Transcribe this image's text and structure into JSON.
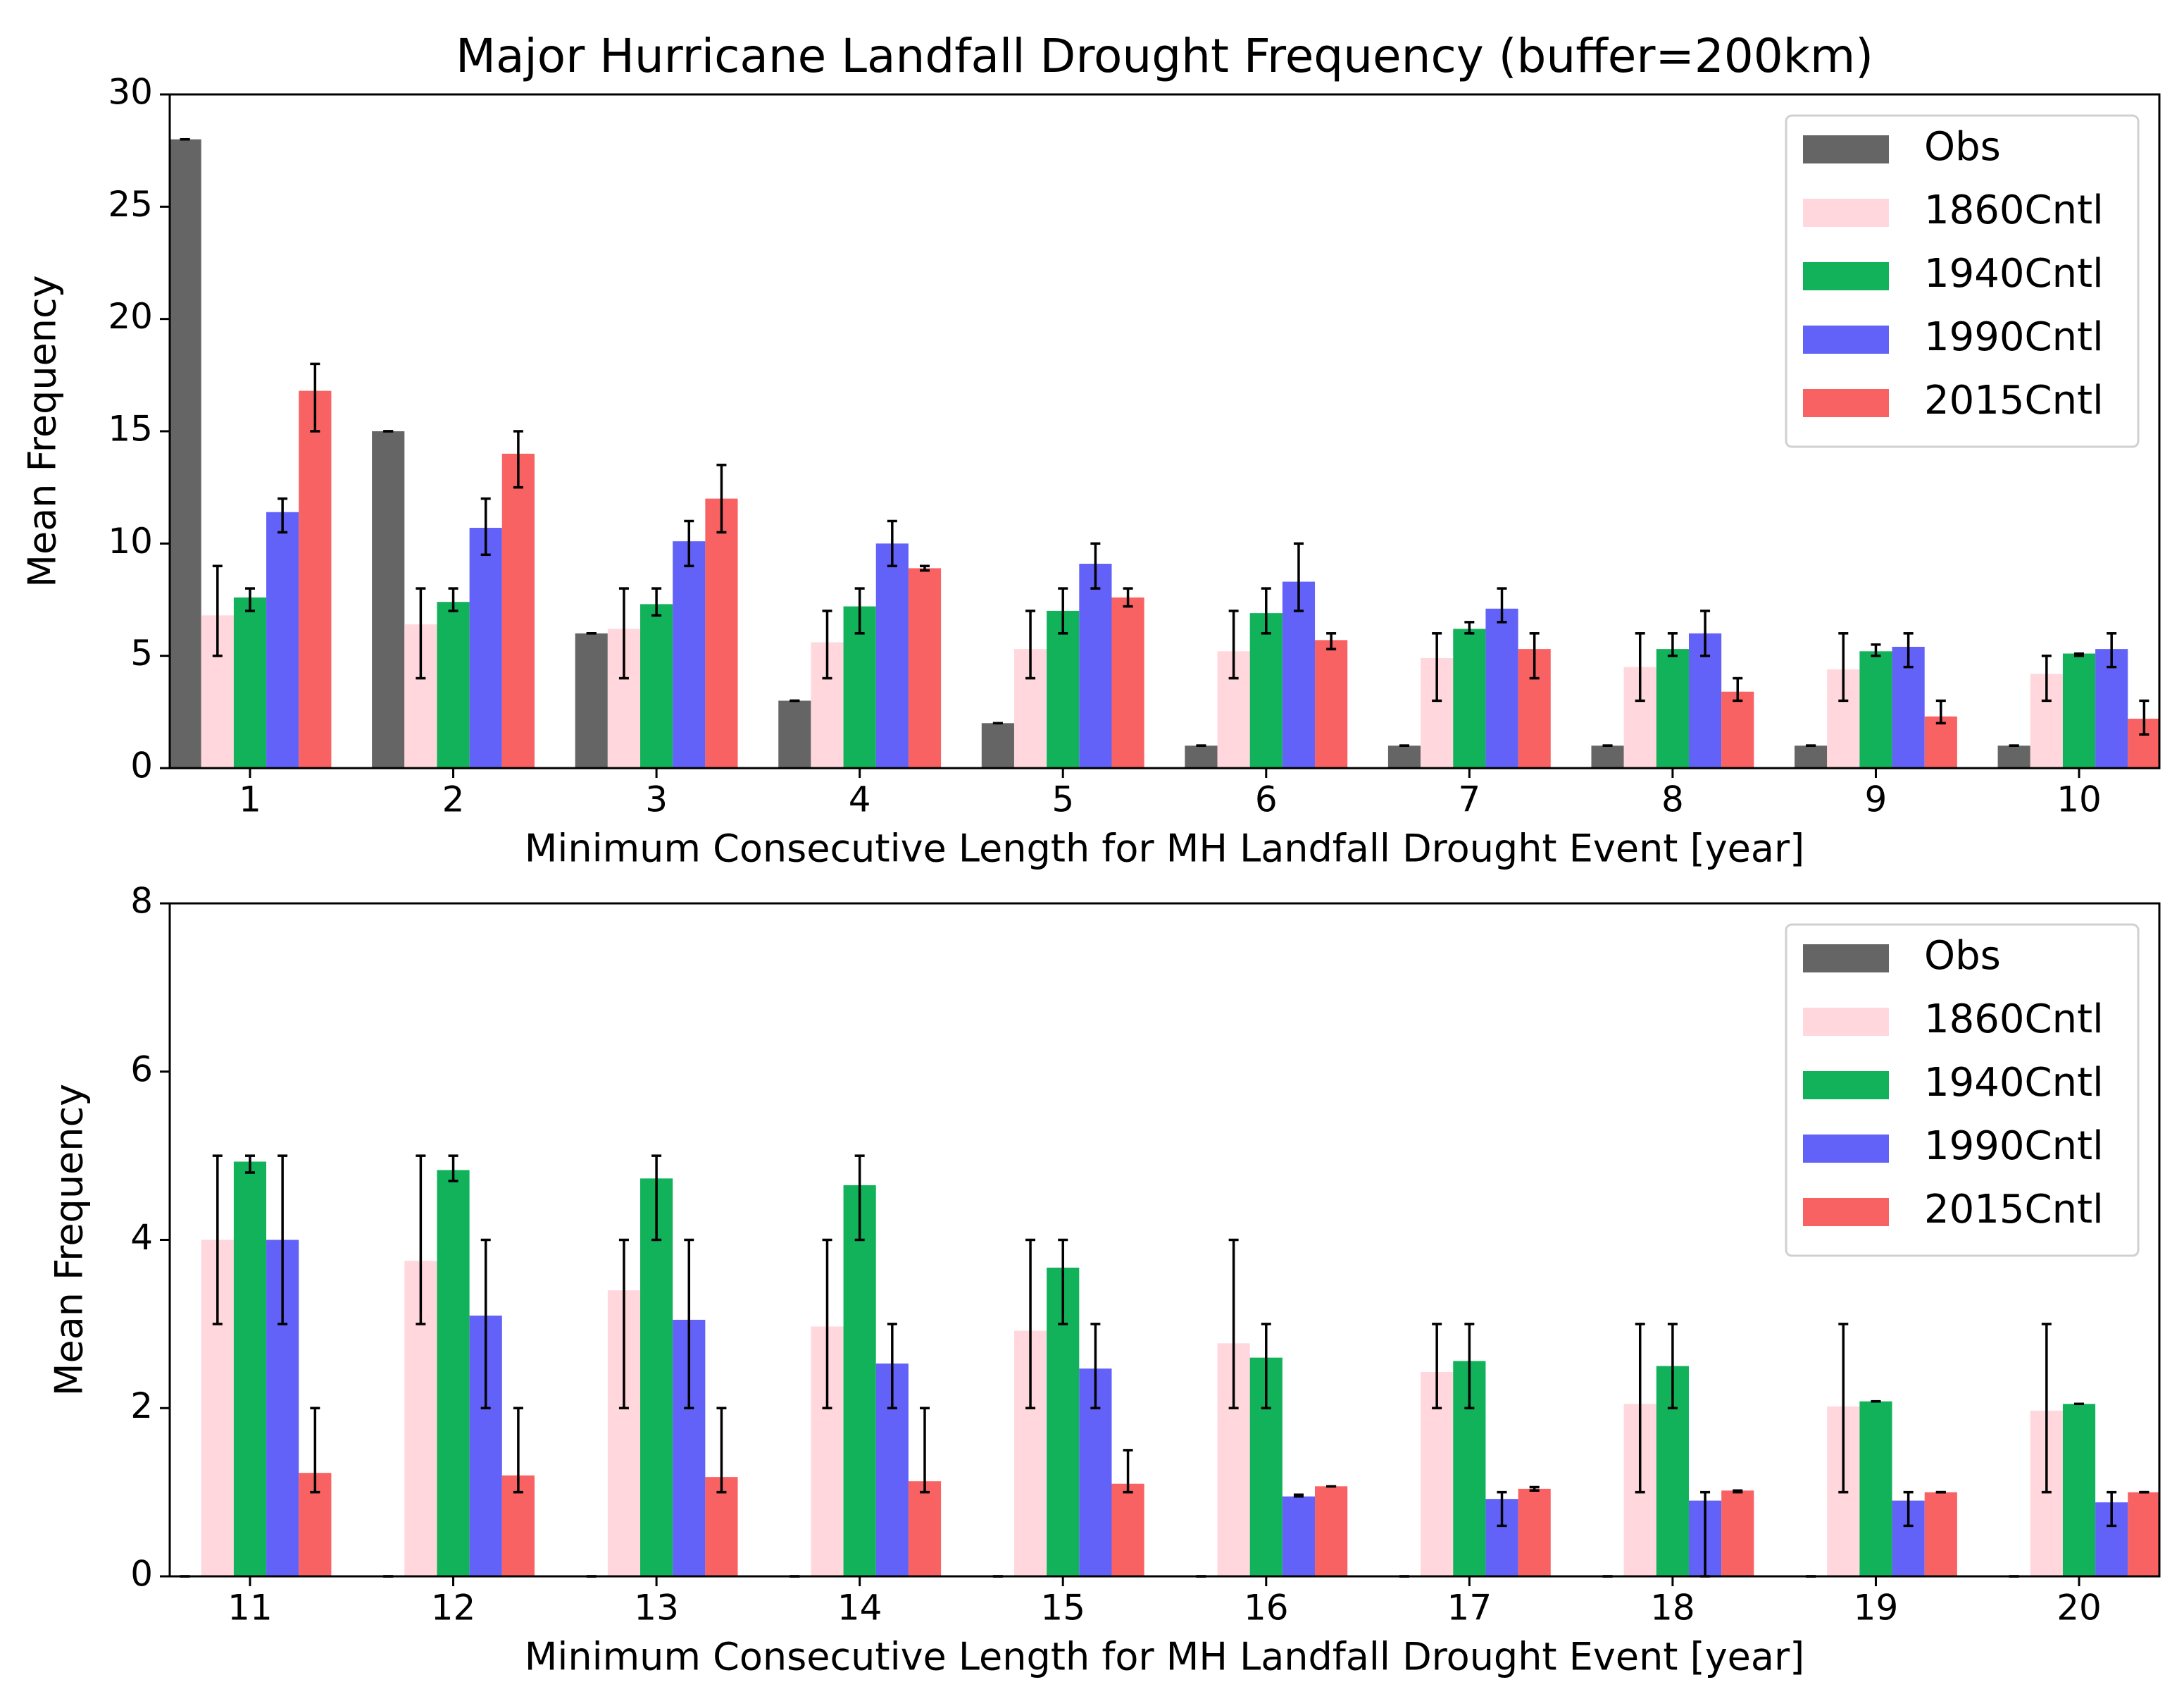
{
  "chart_data": [
    {
      "type": "bar",
      "title": "Major Hurricane Landfall Drought Frequency (buffer=200km)",
      "xlabel": "Minimum Consecutive Length for MH Landfall Drought Event [year]",
      "ylabel": "Mean Frequency",
      "categories": [
        1,
        2,
        3,
        4,
        5,
        6,
        7,
        8,
        9,
        10
      ],
      "ylim": [
        0,
        30
      ],
      "yticks": [
        0,
        5,
        10,
        15,
        20,
        25,
        30
      ],
      "legend": "upper right",
      "series": [
        {
          "name": "Obs",
          "color": "#656565",
          "values": [
            28,
            15,
            6,
            3,
            2,
            1,
            1,
            1,
            1,
            1
          ],
          "lower": [
            28,
            15,
            6,
            3,
            2,
            1,
            1,
            1,
            1,
            1
          ],
          "upper": [
            28,
            15,
            6,
            3,
            2,
            1,
            1,
            1,
            1,
            1
          ]
        },
        {
          "name": "1860Cntl",
          "color": "#ffd7dd",
          "values": [
            6.8,
            6.4,
            6.2,
            5.6,
            5.3,
            5.2,
            4.9,
            4.5,
            4.4,
            4.2
          ],
          "lower": [
            5,
            4,
            4,
            4,
            4,
            4,
            3,
            3,
            3,
            3
          ],
          "upper": [
            9,
            8,
            8,
            7,
            7,
            7,
            6,
            6,
            6,
            5
          ]
        },
        {
          "name": "1940Cntl",
          "color": "#12b25a",
          "values": [
            7.6,
            7.4,
            7.3,
            7.2,
            7,
            6.9,
            6.2,
            5.3,
            5.2,
            5.1
          ],
          "lower": [
            7,
            7,
            6.8,
            6,
            6,
            6,
            6,
            5,
            5,
            5
          ],
          "upper": [
            8,
            8,
            8,
            8,
            8,
            8,
            6.5,
            6,
            5.5,
            5.1
          ]
        },
        {
          "name": "1990Cntl",
          "color": "#6262f9",
          "values": [
            11.4,
            10.7,
            10.1,
            10,
            9.1,
            8.3,
            7.1,
            6,
            5.4,
            5.3
          ],
          "lower": [
            10.5,
            9.5,
            9,
            9,
            8,
            7,
            6.5,
            5,
            4.5,
            4.5
          ],
          "upper": [
            12,
            12,
            11,
            11,
            10,
            10,
            8,
            7,
            6,
            6
          ]
        },
        {
          "name": "2015Cntl",
          "color": "#f96262",
          "values": [
            16.8,
            14,
            12,
            8.9,
            7.6,
            5.7,
            5.3,
            3.4,
            2.3,
            2.2
          ],
          "lower": [
            15,
            12.5,
            10.5,
            8.8,
            7.2,
            5.3,
            4,
            3,
            2,
            1.5
          ],
          "upper": [
            18,
            15,
            13.5,
            9,
            8,
            6,
            6,
            4,
            3,
            3
          ]
        }
      ]
    },
    {
      "type": "bar",
      "xlabel": "Minimum Consecutive Length for MH Landfall Drought Event [year]",
      "ylabel": "Mean Frequency",
      "categories": [
        11,
        12,
        13,
        14,
        15,
        16,
        17,
        18,
        19,
        20
      ],
      "ylim": [
        0,
        8
      ],
      "yticks": [
        0,
        2,
        4,
        6,
        8
      ],
      "legend": "upper right",
      "series": [
        {
          "name": "Obs",
          "color": "#656565",
          "values": [
            0,
            0,
            0,
            0,
            0,
            0,
            0,
            0,
            0,
            0
          ],
          "lower": [
            0,
            0,
            0,
            0,
            0,
            0,
            0,
            0,
            0,
            0
          ],
          "upper": [
            0,
            0,
            0,
            0,
            0,
            0,
            0,
            0,
            0,
            0
          ]
        },
        {
          "name": "1860Cntl",
          "color": "#ffd7dd",
          "values": [
            4,
            3.75,
            3.4,
            2.97,
            2.92,
            2.77,
            2.43,
            2.05,
            2.02,
            1.97
          ],
          "lower": [
            3,
            3,
            2,
            2,
            2,
            2,
            2,
            1,
            1,
            1
          ],
          "upper": [
            5,
            5,
            4,
            4,
            4,
            4,
            3,
            3,
            3,
            3
          ]
        },
        {
          "name": "1940Cntl",
          "color": "#12b25a",
          "values": [
            4.93,
            4.83,
            4.73,
            4.65,
            3.67,
            2.6,
            2.56,
            2.5,
            2.08,
            2.05
          ],
          "lower": [
            4.8,
            4.7,
            4,
            4,
            3,
            2,
            2,
            2,
            2.08,
            2.05
          ],
          "upper": [
            5,
            5,
            5,
            5,
            4,
            3,
            3,
            3,
            2.08,
            2.05
          ]
        },
        {
          "name": "1990Cntl",
          "color": "#6262f9",
          "values": [
            4,
            3.1,
            3.05,
            2.53,
            2.47,
            0.95,
            0.92,
            0.9,
            0.9,
            0.88
          ],
          "lower": [
            3,
            2,
            2,
            2,
            2,
            0.95,
            0.6,
            0,
            0.6,
            0.6
          ],
          "upper": [
            5,
            4,
            4,
            3,
            3,
            0.97,
            1,
            1,
            1,
            1
          ]
        },
        {
          "name": "2015Cntl",
          "color": "#f96262",
          "values": [
            1.23,
            1.2,
            1.18,
            1.13,
            1.1,
            1.07,
            1.04,
            1.02,
            1,
            1
          ],
          "lower": [
            1,
            1,
            1,
            1,
            1,
            1.07,
            1.02,
            1,
            1,
            1
          ],
          "upper": [
            2,
            2,
            2,
            2,
            1.5,
            1.07,
            1.06,
            1.02,
            1,
            1
          ]
        }
      ]
    }
  ]
}
